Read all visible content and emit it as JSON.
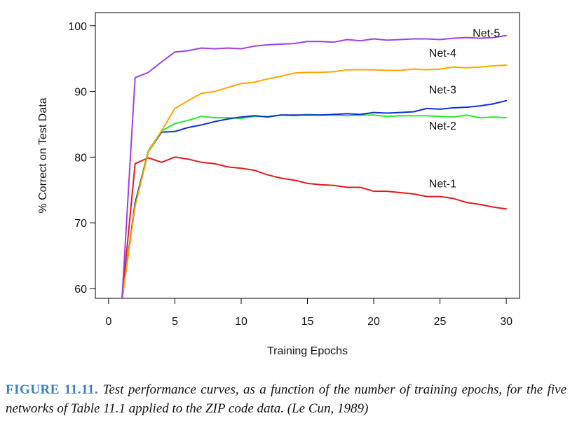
{
  "caption": {
    "figure_id": "FIGURE 11.11.",
    "text": "Test performance curves, as a function of the number of training epochs, for the five networks of Table 11.1 applied to the ZIP code data. (Le Cun, 1989)"
  },
  "chart_data": {
    "type": "line",
    "title": "",
    "xlabel": "Training Epochs",
    "ylabel": "% Correct on Test Data",
    "xlim": [
      -1,
      31
    ],
    "ylim": [
      58.5,
      102
    ],
    "xticks": [
      0,
      5,
      10,
      15,
      20,
      25,
      30
    ],
    "yticks": [
      60,
      70,
      80,
      90,
      100
    ],
    "grid": false,
    "legend": "none",
    "series": [
      {
        "name": "Net-1",
        "color": "#e31a1c",
        "x": [
          1,
          2,
          3,
          4,
          5,
          6,
          7,
          8,
          9,
          10,
          11,
          12,
          13,
          14,
          15,
          16,
          17,
          18,
          19,
          20,
          21,
          22,
          23,
          24,
          25,
          26,
          27,
          28,
          29,
          30
        ],
        "values": [
          58.0,
          79.0,
          79.9,
          79.2,
          80.0,
          79.7,
          79.2,
          79.0,
          78.5,
          78.3,
          78.0,
          77.3,
          76.8,
          76.5,
          76.0,
          75.8,
          75.7,
          75.4,
          75.4,
          74.8,
          74.8,
          74.6,
          74.4,
          74.0,
          74.0,
          73.7,
          73.1,
          72.8,
          72.4,
          72.1
        ]
      },
      {
        "name": "Net-2",
        "color": "#22ee22",
        "x": [
          1,
          2,
          3,
          4,
          5,
          6,
          7,
          8,
          9,
          10,
          11,
          12,
          13,
          14,
          15,
          16,
          17,
          18,
          19,
          20,
          21,
          22,
          23,
          24,
          25,
          26,
          27,
          28,
          29,
          30
        ],
        "values": [
          58.0,
          73.0,
          81.0,
          84.0,
          85.1,
          85.6,
          86.2,
          86.0,
          86.0,
          85.9,
          86.2,
          86.2,
          86.4,
          86.3,
          86.5,
          86.4,
          86.4,
          86.3,
          86.4,
          86.4,
          86.2,
          86.3,
          86.3,
          86.3,
          86.2,
          86.1,
          86.4,
          86.0,
          86.1,
          86.0
        ]
      },
      {
        "name": "Net-3",
        "color": "#1030d0",
        "x": [
          1,
          2,
          3,
          4,
          5,
          6,
          7,
          8,
          9,
          10,
          11,
          12,
          13,
          14,
          15,
          16,
          17,
          18,
          19,
          20,
          21,
          22,
          23,
          24,
          25,
          26,
          27,
          28,
          29,
          30
        ],
        "values": [
          58.0,
          73.0,
          80.8,
          83.8,
          83.9,
          84.5,
          84.9,
          85.4,
          85.8,
          86.1,
          86.3,
          86.1,
          86.4,
          86.4,
          86.4,
          86.4,
          86.5,
          86.6,
          86.5,
          86.8,
          86.7,
          86.8,
          86.9,
          87.4,
          87.3,
          87.5,
          87.6,
          87.8,
          88.1,
          88.6
        ]
      },
      {
        "name": "Net-4",
        "color": "#ffa500",
        "x": [
          1,
          2,
          3,
          4,
          5,
          6,
          7,
          8,
          9,
          10,
          11,
          12,
          13,
          14,
          15,
          16,
          17,
          18,
          19,
          20,
          21,
          22,
          23,
          24,
          25,
          26,
          27,
          28,
          29,
          30
        ],
        "values": [
          58.0,
          72.5,
          80.8,
          84.0,
          87.4,
          88.6,
          89.7,
          90.0,
          90.6,
          91.2,
          91.4,
          91.9,
          92.3,
          92.8,
          92.9,
          92.9,
          93.0,
          93.3,
          93.3,
          93.3,
          93.2,
          93.2,
          93.4,
          93.3,
          93.4,
          93.7,
          93.6,
          93.7,
          93.9,
          94.0
        ]
      },
      {
        "name": "Net-5",
        "color": "#a040e0",
        "x": [
          1,
          2,
          3,
          4,
          5,
          6,
          7,
          8,
          9,
          10,
          11,
          12,
          13,
          14,
          15,
          16,
          17,
          18,
          19,
          20,
          21,
          22,
          23,
          24,
          25,
          26,
          27,
          28,
          29,
          30
        ],
        "values": [
          58.0,
          92.1,
          92.9,
          94.5,
          96.0,
          96.2,
          96.6,
          96.5,
          96.6,
          96.5,
          96.9,
          97.1,
          97.2,
          97.3,
          97.6,
          97.6,
          97.5,
          97.9,
          97.7,
          98.0,
          97.8,
          97.9,
          98.0,
          98.0,
          97.9,
          98.1,
          98.2,
          98.1,
          98.2,
          98.5
        ]
      }
    ],
    "annotations": [
      {
        "text": "Net-5",
        "x": 28.5,
        "y": 98.3
      },
      {
        "text": "Net-4",
        "x": 25.2,
        "y": 95.3
      },
      {
        "text": "Net-3",
        "x": 25.2,
        "y": 89.7
      },
      {
        "text": "Net-2",
        "x": 25.2,
        "y": 84.2
      },
      {
        "text": "Net-1",
        "x": 25.2,
        "y": 75.4
      }
    ]
  }
}
